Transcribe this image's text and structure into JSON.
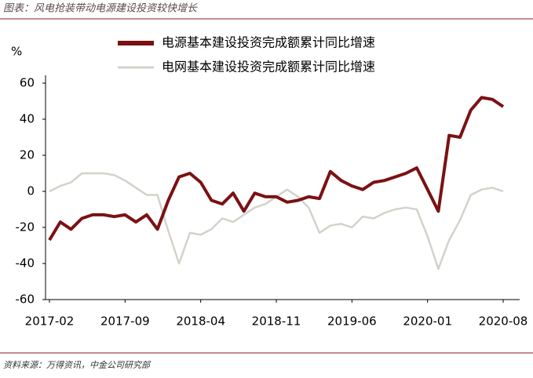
{
  "header": {
    "title": "图表：风电抢装带动电源建设投资较快增长"
  },
  "chart_data": {
    "type": "line",
    "y_label": "%",
    "categories": [
      "2017-02",
      null,
      null,
      null,
      null,
      null,
      null,
      "2017-09",
      null,
      null,
      null,
      null,
      null,
      null,
      "2018-04",
      null,
      null,
      null,
      null,
      null,
      null,
      "2018-11",
      null,
      null,
      null,
      null,
      null,
      null,
      "2019-06",
      null,
      null,
      null,
      null,
      null,
      null,
      "2020-01",
      null,
      null,
      null,
      null,
      null,
      null,
      "2020-08"
    ],
    "series": [
      {
        "name": "电源基本建设投资完成额累计同比增速",
        "color": "#7b1113",
        "values": [
          -27,
          -17,
          -21,
          -15,
          -13,
          -13,
          -14,
          -13,
          -17,
          -13,
          -21,
          -5,
          8,
          10,
          5,
          -5,
          -7,
          -1,
          -11,
          -1,
          -3,
          -3,
          -6,
          -5,
          -3,
          -4,
          11,
          6,
          3,
          1,
          5,
          6,
          8,
          10,
          13,
          1,
          -11,
          31,
          30,
          45,
          52,
          51,
          47
        ]
      },
      {
        "name": "电网基本建设投资完成额累计同比增速",
        "color": "#d3d2cb",
        "values": [
          0,
          3,
          5,
          10,
          10,
          10,
          9,
          6,
          2,
          -2,
          -2,
          -22,
          -40,
          -23,
          -24,
          -21,
          -15,
          -17,
          -13,
          -9,
          -7,
          -3,
          1,
          -3,
          -9,
          -23,
          -19,
          -18,
          -20,
          -14,
          -15,
          -12,
          -10,
          -9,
          -10,
          -25,
          -43,
          -27,
          -16,
          -2,
          1,
          2,
          0
        ]
      }
    ],
    "ylim": [
      -60,
      60
    ],
    "yticks": [
      -60,
      -40,
      -20,
      0,
      20,
      40,
      60
    ]
  },
  "footer": {
    "source": "资料来源：万得资讯，中金公司研究部"
  }
}
